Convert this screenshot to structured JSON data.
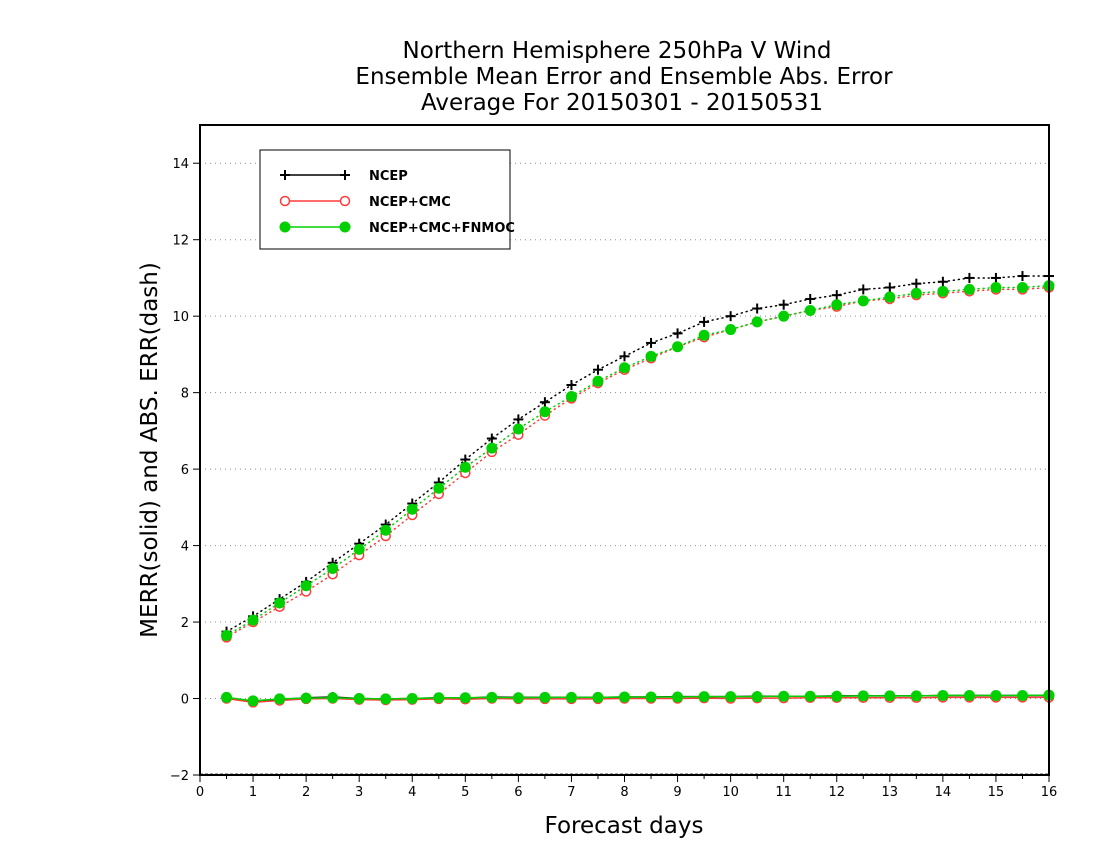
{
  "chart_data": {
    "type": "line",
    "title_lines": [
      "Northern Hemisphere 250hPa V Wind",
      "Ensemble Mean Error and Ensemble Abs. Error",
      "Average For 20150301 - 20150531"
    ],
    "xlabel": "Forecast days",
    "ylabel": "MERR(solid) and ABS. ERR(dash)",
    "xlim": [
      0,
      16
    ],
    "ylim": [
      -2,
      15
    ],
    "xticks": [
      0,
      1,
      2,
      3,
      4,
      5,
      6,
      7,
      8,
      9,
      10,
      11,
      12,
      13,
      14,
      15,
      16
    ],
    "yticks": [
      -2,
      0,
      2,
      4,
      6,
      8,
      10,
      12,
      14
    ],
    "grid": "horizontal dotted",
    "legend_position": "top-left",
    "x": [
      0.5,
      1,
      1.5,
      2,
      2.5,
      3,
      3.5,
      4,
      4.5,
      5,
      5.5,
      6,
      6.5,
      7,
      7.5,
      8,
      8.5,
      9,
      9.5,
      10,
      10.5,
      11,
      11.5,
      12,
      12.5,
      13,
      13.5,
      14,
      14.5,
      15,
      15.5,
      16
    ],
    "series": [
      {
        "name": "NCEP",
        "color": "#000000",
        "marker": "plus",
        "abs_err": [
          1.75,
          2.15,
          2.6,
          3.05,
          3.55,
          4.05,
          4.55,
          5.1,
          5.65,
          6.25,
          6.8,
          7.3,
          7.75,
          8.2,
          8.6,
          8.95,
          9.3,
          9.55,
          9.85,
          10.0,
          10.2,
          10.3,
          10.45,
          10.55,
          10.7,
          10.75,
          10.85,
          10.9,
          11.0,
          11.0,
          11.05,
          11.05
        ],
        "mean_err": [
          0.02,
          -0.08,
          -0.03,
          0.02,
          0.04,
          0.0,
          -0.01,
          0.0,
          0.02,
          0.01,
          0.04,
          0.03,
          0.03,
          0.03,
          0.03,
          0.04,
          0.04,
          0.05,
          0.05,
          0.05,
          0.06,
          0.06,
          0.06,
          0.07,
          0.07,
          0.07,
          0.07,
          0.08,
          0.08,
          0.08,
          0.08,
          0.08
        ]
      },
      {
        "name": "NCEP+CMC",
        "color": "#ff3b3b",
        "marker": "open-circle",
        "abs_err": [
          1.6,
          2.0,
          2.4,
          2.8,
          3.25,
          3.75,
          4.25,
          4.8,
          5.35,
          5.9,
          6.45,
          6.9,
          7.4,
          7.85,
          8.25,
          8.6,
          8.9,
          9.2,
          9.45,
          9.65,
          9.85,
          10.0,
          10.15,
          10.25,
          10.4,
          10.45,
          10.55,
          10.6,
          10.65,
          10.7,
          10.7,
          10.75
        ],
        "mean_err": [
          0.0,
          -0.1,
          -0.05,
          -0.01,
          0.0,
          -0.03,
          -0.04,
          -0.03,
          -0.01,
          -0.02,
          0.0,
          -0.01,
          -0.01,
          -0.01,
          -0.01,
          0.0,
          0.0,
          0.0,
          0.01,
          0.0,
          0.01,
          0.01,
          0.02,
          0.02,
          0.02,
          0.02,
          0.02,
          0.03,
          0.03,
          0.03,
          0.03,
          0.03
        ]
      },
      {
        "name": "NCEP+CMC+FNMOC",
        "color": "#00d000",
        "marker": "filled-circle",
        "abs_err": [
          1.65,
          2.05,
          2.5,
          2.95,
          3.4,
          3.9,
          4.4,
          4.95,
          5.5,
          6.05,
          6.55,
          7.05,
          7.5,
          7.9,
          8.3,
          8.65,
          8.95,
          9.2,
          9.5,
          9.65,
          9.85,
          10.0,
          10.15,
          10.3,
          10.4,
          10.5,
          10.6,
          10.65,
          10.7,
          10.75,
          10.75,
          10.8
        ],
        "mean_err": [
          0.03,
          -0.06,
          -0.01,
          0.01,
          0.02,
          0.0,
          -0.01,
          0.0,
          0.02,
          0.02,
          0.03,
          0.02,
          0.03,
          0.03,
          0.03,
          0.04,
          0.04,
          0.04,
          0.05,
          0.05,
          0.05,
          0.06,
          0.06,
          0.06,
          0.07,
          0.07,
          0.07,
          0.08,
          0.08,
          0.08,
          0.08,
          0.09
        ]
      }
    ]
  }
}
